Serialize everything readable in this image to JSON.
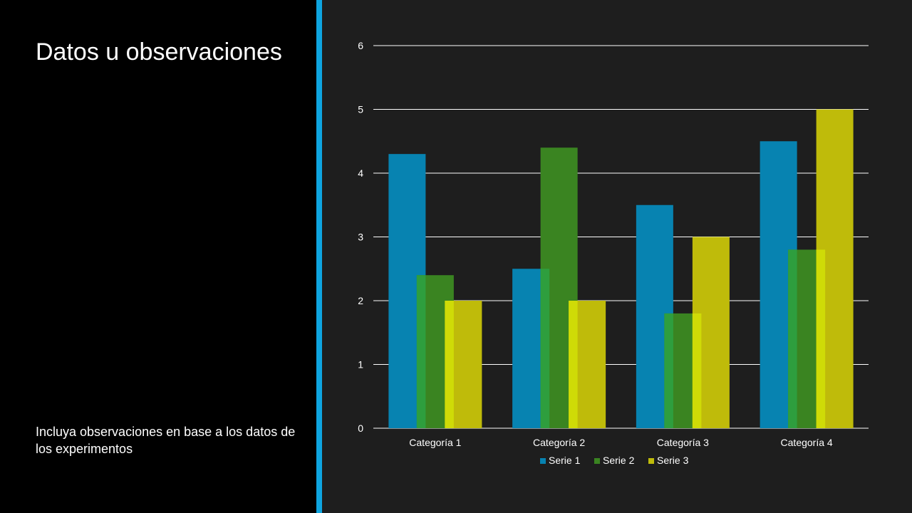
{
  "slide": {
    "title": "Datos u observaciones",
    "note": "Incluya observaciones en base a los datos de los experimentos"
  },
  "colors": {
    "background": "#000000",
    "chart_background": "#1e1e1e",
    "divider": "#0ea5e0",
    "gridline": "#ffffff",
    "text": "#ffffff"
  },
  "chart_data": {
    "type": "bar",
    "categories": [
      "Categoría 1",
      "Categoría 2",
      "Categoría 3",
      "Categoría 4"
    ],
    "series": [
      {
        "name": "Serie 1",
        "values": [
          4.3,
          2.5,
          3.5,
          4.5
        ],
        "color": "#0783b1",
        "highlight": "#0783b1"
      },
      {
        "name": "Serie 2",
        "values": [
          2.4,
          4.4,
          1.8,
          2.8
        ],
        "color": "#3a8421",
        "highlight": "#2e9e3e"
      },
      {
        "name": "Serie 3",
        "values": [
          2.0,
          2.0,
          3.0,
          5.0
        ],
        "color": "#bfbb0a",
        "highlight": "#cfdb07"
      }
    ],
    "yticks": [
      0,
      1,
      2,
      3,
      4,
      5,
      6
    ],
    "ylim": [
      0,
      6
    ],
    "grid": true,
    "legend": "bottom",
    "title": "",
    "xlabel": "",
    "ylabel": ""
  }
}
